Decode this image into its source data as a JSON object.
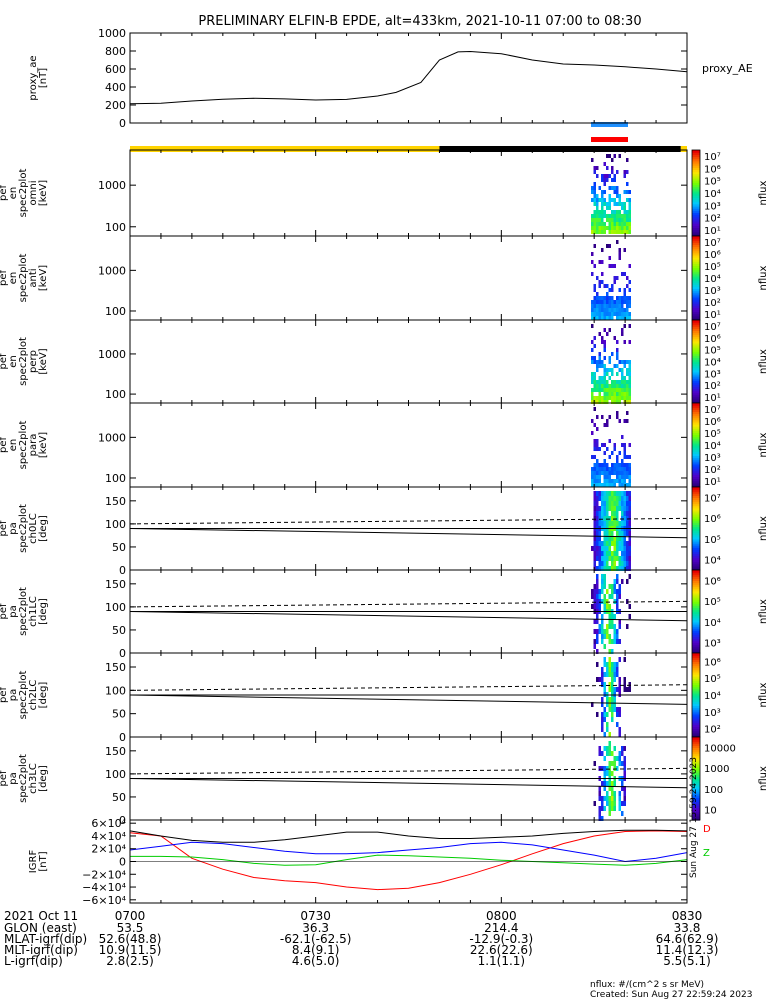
{
  "title": "PRELIMINARY ELFIN-B EPDE, alt=433km, 2021-10-11 07:00 to 08:30",
  "colors": {
    "fast_mode_bar": "#ffd400",
    "science_bar": "#000000",
    "blue_segment": "#1e90ff",
    "red_segment": "#ff0000",
    "bfield_x": "#ff0000",
    "bfield_y": "#00cc00",
    "bfield_z": "#0000ff",
    "bfield_mag": "#000000"
  },
  "chart_data": [
    {
      "type": "line",
      "panel": "proxy_ae",
      "ylabel_lines": [
        "proxy_ae",
        "[nT]"
      ],
      "legend": "proxy_AE",
      "ylim": [
        0,
        1000
      ],
      "yticks": [
        "0",
        "200",
        "400",
        "600",
        "800",
        "1000"
      ],
      "ytick_values": [
        0,
        200,
        400,
        600,
        800,
        1000
      ],
      "x_minutes": [
        0,
        5,
        10,
        15,
        20,
        25,
        30,
        35,
        40,
        43,
        47,
        50,
        53,
        55,
        60,
        65,
        70,
        75,
        80,
        85,
        90
      ],
      "values": [
        215,
        220,
        245,
        265,
        275,
        268,
        255,
        262,
        300,
        340,
        450,
        700,
        790,
        795,
        770,
        700,
        655,
        645,
        625,
        600,
        570
      ]
    },
    {
      "type": "heatmap",
      "panel": "omni",
      "ylabel_lines": [
        "elb",
        "pef",
        "en",
        "spec2plot",
        "omni",
        "[keV]"
      ],
      "yscale": "log",
      "ylim": [
        60,
        7000
      ],
      "yticks": [
        "100",
        "1000"
      ],
      "ytick_values": [
        100,
        1000
      ],
      "zlabel": "nflux",
      "zticks": [
        "10¹",
        "10²",
        "10³",
        "10⁴",
        "10⁵",
        "10⁶",
        "10⁷"
      ],
      "zrange": [
        10,
        10000000
      ]
    },
    {
      "type": "heatmap",
      "panel": "anti",
      "ylabel_lines": [
        "elb",
        "pef",
        "en",
        "spec2plot",
        "anti",
        "[keV]"
      ],
      "yscale": "log",
      "ylim": [
        60,
        7000
      ],
      "yticks": [
        "100",
        "1000"
      ],
      "ytick_values": [
        100,
        1000
      ],
      "zlabel": "nflux",
      "zticks": [
        "10¹",
        "10²",
        "10³",
        "10⁴",
        "10⁵",
        "10⁶",
        "10⁷"
      ],
      "zrange": [
        10,
        10000000
      ]
    },
    {
      "type": "heatmap",
      "panel": "perp",
      "ylabel_lines": [
        "elb",
        "pef",
        "en",
        "spec2plot",
        "perp",
        "[keV]"
      ],
      "yscale": "log",
      "ylim": [
        60,
        7000
      ],
      "yticks": [
        "100",
        "1000"
      ],
      "ytick_values": [
        100,
        1000
      ],
      "zlabel": "nflux",
      "zticks": [
        "10¹",
        "10²",
        "10³",
        "10⁴",
        "10⁵",
        "10⁶",
        "10⁷"
      ],
      "zrange": [
        10,
        10000000
      ]
    },
    {
      "type": "heatmap",
      "panel": "para",
      "ylabel_lines": [
        "elb",
        "pef",
        "en",
        "spec2plot",
        "para",
        "[keV]"
      ],
      "yscale": "log",
      "ylim": [
        60,
        7000
      ],
      "yticks": [
        "100",
        "1000"
      ],
      "ytick_values": [
        100,
        1000
      ],
      "zlabel": "nflux",
      "zticks": [
        "10¹",
        "10²",
        "10³",
        "10⁴",
        "10⁵",
        "10⁶",
        "10⁷"
      ],
      "zrange": [
        10,
        10000000
      ]
    },
    {
      "type": "heatmap",
      "panel": "ch0LC",
      "ylabel_lines": [
        "elb",
        "pef",
        "pa",
        "spec2plot",
        "ch0LC",
        "[deg]"
      ],
      "ylim": [
        0,
        180
      ],
      "yticks": [
        "0",
        "50",
        "100",
        "150"
      ],
      "ytick_values": [
        0,
        50,
        100,
        150
      ],
      "zlabel": "nflux",
      "zticks": [
        "10⁴",
        "10⁵",
        "10⁶",
        "10⁷"
      ],
      "zrange": [
        3000,
        10000000
      ],
      "lines": {
        "solid_upper": [
          90,
          70
        ],
        "solid_lower": [
          90,
          90
        ],
        "dashed": [
          100,
          112
        ]
      }
    },
    {
      "type": "heatmap",
      "panel": "ch1LC",
      "ylabel_lines": [
        "elb",
        "pef",
        "pa",
        "spec2plot",
        "ch1LC",
        "[deg]"
      ],
      "ylim": [
        0,
        180
      ],
      "yticks": [
        "0",
        "50",
        "100",
        "150"
      ],
      "ytick_values": [
        0,
        50,
        100,
        150
      ],
      "zlabel": "nflux",
      "zticks": [
        "10³",
        "10⁴",
        "10⁵",
        "10⁶"
      ],
      "zrange": [
        300,
        3000000
      ],
      "lines": {
        "solid_upper": [
          90,
          70
        ],
        "solid_lower": [
          90,
          90
        ],
        "dashed": [
          100,
          112
        ]
      }
    },
    {
      "type": "heatmap",
      "panel": "ch2LC",
      "ylabel_lines": [
        "elb",
        "pef",
        "pa",
        "spec2plot",
        "ch2LC",
        "[deg]"
      ],
      "ylim": [
        0,
        180
      ],
      "yticks": [
        "0",
        "50",
        "100",
        "150"
      ],
      "ytick_values": [
        0,
        50,
        100,
        150
      ],
      "zlabel": "nflux",
      "zticks": [
        "10²",
        "10³",
        "10⁴",
        "10⁵",
        "10⁶"
      ],
      "zrange": [
        50,
        3000000
      ],
      "lines": {
        "solid_upper": [
          90,
          70
        ],
        "solid_lower": [
          90,
          90
        ],
        "dashed": [
          100,
          112
        ]
      }
    },
    {
      "type": "heatmap",
      "panel": "ch3LC",
      "ylabel_lines": [
        "elb",
        "pef",
        "pa",
        "spec2plot",
        "ch3LC",
        "[deg]"
      ],
      "ylim": [
        0,
        180
      ],
      "yticks": [
        "0",
        "50",
        "100",
        "150"
      ],
      "ytick_values": [
        0,
        50,
        100,
        150
      ],
      "zlabel": "nflux",
      "zticks": [
        "10",
        "100",
        "1000",
        "10000"
      ],
      "zrange": [
        10,
        10000
      ],
      "lines": {
        "solid_upper": [
          90,
          70
        ],
        "solid_lower": [
          90,
          90
        ],
        "dashed": [
          100,
          112
        ]
      }
    },
    {
      "type": "line",
      "panel": "igrf",
      "ylabel_lines": [
        "IGRF",
        "[nT]"
      ],
      "ylim": [
        -65000,
        65000
      ],
      "yticks": [
        "−6×10⁴",
        "−4×10⁴",
        "−2×10⁴",
        "0",
        "2×10⁴",
        "4×10⁴",
        "6×10⁴"
      ],
      "ytick_values": [
        -60000,
        -40000,
        -20000,
        0,
        20000,
        40000,
        60000
      ],
      "x_minutes": [
        0,
        5,
        10,
        15,
        20,
        25,
        30,
        35,
        40,
        45,
        50,
        55,
        60,
        65,
        70,
        75,
        80,
        85,
        90
      ],
      "series": [
        {
          "values": [
            45000,
            40000,
            5000,
            -12000,
            -25000,
            -30000,
            -33000,
            -40000,
            -44000,
            -42000,
            -33000,
            -20000,
            -5000,
            12000,
            28000,
            40000,
            47000,
            48000,
            47000
          ]
        },
        {
          "values": [
            8000,
            8000,
            7000,
            3000,
            -3000,
            -6000,
            -5000,
            3000,
            10000,
            9000,
            7000,
            5000,
            2000,
            0,
            -2000,
            -4000,
            -6000,
            -3000,
            3000
          ]
        },
        {
          "values": [
            18000,
            24000,
            30000,
            28000,
            22000,
            16000,
            12000,
            12000,
            14000,
            18000,
            22000,
            28000,
            30000,
            26000,
            18000,
            10000,
            0,
            5000,
            14000
          ]
        },
        {
          "values": [
            48000,
            40000,
            33000,
            30000,
            30000,
            34000,
            40000,
            46000,
            46000,
            40000,
            36000,
            36000,
            38000,
            40000,
            44000,
            47000,
            49000,
            49000,
            48000
          ]
        }
      ],
      "end_labels": [
        "D",
        "Z"
      ]
    }
  ],
  "time_axis": {
    "date_label": "2021 Oct 11",
    "ticks": [
      "0700",
      "0730",
      "0800",
      "0830"
    ]
  },
  "ephemeris": {
    "rows": [
      {
        "label": "GLON (east)",
        "values": [
          "53.5",
          "36.3",
          "214.4",
          "33.8"
        ]
      },
      {
        "label": "MLAT-igrf(dip)",
        "values": [
          "52.6(48.8)",
          "-62.1(-62.5)",
          "-12.9(-0.3)",
          "64.6(62.9)"
        ]
      },
      {
        "label": "MLT-igrf(dip)",
        "values": [
          "10.9(11.5)",
          "8.4(9.1)",
          "22.6(22.6)",
          "11.4(12.3)"
        ]
      },
      {
        "label": "L-igrf(dip)",
        "values": [
          "2.8(2.5)",
          "4.6(5.0)",
          "1.1(1.1)",
          "5.5(5.1)"
        ]
      }
    ]
  },
  "footnotes": {
    "units": "nflux: #/(cm^2 s sr MeV)",
    "created": "Created: Sun Aug 27 22:59:24 2023",
    "side_stamp": "Sun Aug 27 15:59:24 2023"
  }
}
